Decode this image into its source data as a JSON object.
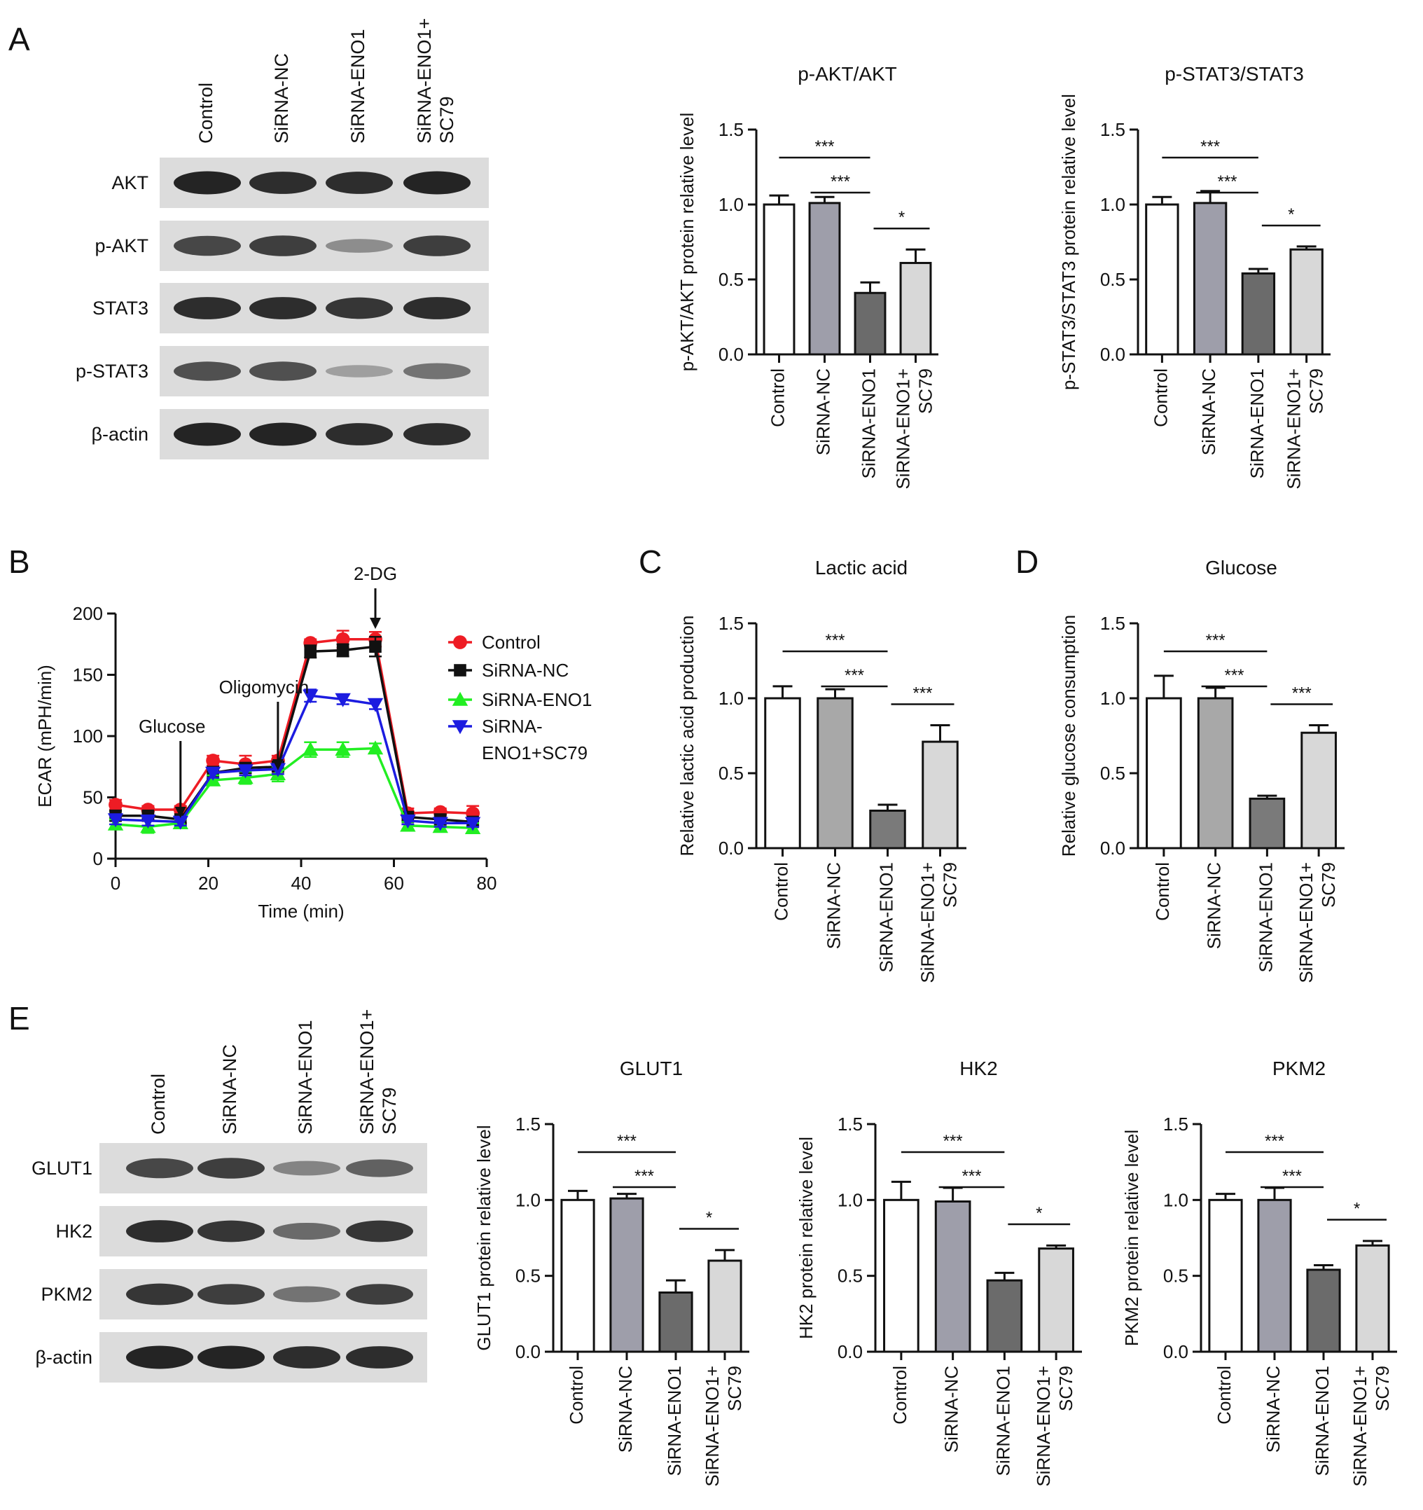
{
  "panel_labels": [
    "A",
    "B",
    "C",
    "D",
    "E"
  ],
  "blot_a": {
    "lanes": [
      "Control",
      "SiRNA-NC",
      "SiRNA-ENO1",
      "SiRNA-ENO1+ SC79"
    ],
    "rows": [
      {
        "label": "AKT",
        "intensity": [
          0.95,
          0.9,
          0.9,
          0.95
        ]
      },
      {
        "label": "p-AKT",
        "intensity": [
          0.75,
          0.8,
          0.35,
          0.8
        ]
      },
      {
        "label": "STAT3",
        "intensity": [
          0.9,
          0.9,
          0.85,
          0.9
        ]
      },
      {
        "label": "p-STAT3",
        "intensity": [
          0.7,
          0.7,
          0.25,
          0.5
        ]
      },
      {
        "label": "β-actin",
        "intensity": [
          0.95,
          0.95,
          0.9,
          0.9
        ]
      }
    ]
  },
  "blot_e": {
    "lanes": [
      "Control",
      "SiRNA-NC",
      "SiRNA-ENO1",
      "SiRNA-ENO1+ SC79"
    ],
    "rows": [
      {
        "label": "GLUT1",
        "intensity": [
          0.75,
          0.8,
          0.4,
          0.6
        ]
      },
      {
        "label": "HK2",
        "intensity": [
          0.9,
          0.85,
          0.55,
          0.85
        ]
      },
      {
        "label": "PKM2",
        "intensity": [
          0.85,
          0.8,
          0.5,
          0.8
        ]
      },
      {
        "label": "β-actin",
        "intensity": [
          0.95,
          0.95,
          0.9,
          0.9
        ]
      }
    ]
  },
  "chart_data": [
    {
      "id": "akt",
      "type": "bar",
      "title": "p-AKT/AKT",
      "ylabel": "p-AKT/AKT protein relative level",
      "categories": [
        "Control",
        "SiRNA-NC",
        "SiRNA-ENO1",
        "SiRNA-ENO1+ SC79"
      ],
      "values": [
        1.0,
        1.01,
        0.41,
        0.61
      ],
      "errors": [
        0.06,
        0.04,
        0.07,
        0.09
      ],
      "bar_colors": [
        "#ffffff",
        "#9e9eaa",
        "#6b6b6b",
        "#d8d8d8"
      ],
      "ylim": [
        0,
        1.5
      ],
      "yticks": [
        "0.0",
        "0.5",
        "1.0",
        "1.5"
      ],
      "significance": [
        {
          "from": 0,
          "to": 2,
          "label": "***"
        },
        {
          "from": 1,
          "to": 2,
          "label": "***"
        },
        {
          "from": 2,
          "to": 3,
          "label": "*"
        }
      ]
    },
    {
      "id": "stat3",
      "type": "bar",
      "title": "p-STAT3/STAT3",
      "ylabel": "p-STAT3/STAT3 protein relative level",
      "categories": [
        "Control",
        "SiRNA-NC",
        "SiRNA-ENO1",
        "SiRNA-ENO1+ SC79"
      ],
      "values": [
        1.0,
        1.01,
        0.54,
        0.7
      ],
      "errors": [
        0.05,
        0.08,
        0.03,
        0.02
      ],
      "bar_colors": [
        "#ffffff",
        "#9e9eaa",
        "#6b6b6b",
        "#d8d8d8"
      ],
      "ylim": [
        0,
        1.5
      ],
      "yticks": [
        "0.0",
        "0.5",
        "1.0",
        "1.5"
      ],
      "significance": [
        {
          "from": 0,
          "to": 2,
          "label": "***"
        },
        {
          "from": 1,
          "to": 2,
          "label": "***"
        },
        {
          "from": 2,
          "to": 3,
          "label": "*"
        }
      ]
    },
    {
      "id": "ecar",
      "type": "line",
      "title": "",
      "xlabel": "Time (min)",
      "ylabel": "ECAR (mPH/min)",
      "xlim": [
        0,
        80
      ],
      "ylim": [
        0,
        200
      ],
      "xticks": [
        "0",
        "20",
        "40",
        "60",
        "80"
      ],
      "yticks": [
        "0",
        "50",
        "100",
        "150",
        "200"
      ],
      "x": [
        0,
        7,
        14,
        21,
        28,
        35,
        42,
        49,
        56,
        63,
        70,
        77
      ],
      "series": [
        {
          "name": "Control",
          "color": "#ee1c24",
          "marker": "circle",
          "values": [
            44,
            40,
            40,
            80,
            77,
            80,
            176,
            179,
            179,
            37,
            38,
            37
          ],
          "errors": [
            4,
            3,
            3,
            4,
            7,
            4,
            3,
            7,
            6,
            4,
            3,
            6
          ]
        },
        {
          "name": "SiRNA-NC",
          "color": "#111111",
          "marker": "square",
          "values": [
            35,
            35,
            32,
            70,
            74,
            75,
            169,
            170,
            173,
            34,
            32,
            30
          ],
          "errors": [
            4,
            3,
            3,
            5,
            4,
            4,
            5,
            5,
            8,
            3,
            4,
            3
          ]
        },
        {
          "name": "SiRNA-ENO1",
          "color": "#22ee22",
          "marker": "triangle-up",
          "values": [
            28,
            26,
            29,
            64,
            66,
            69,
            89,
            89,
            90,
            27,
            26,
            25
          ],
          "errors": [
            4,
            5,
            3,
            4,
            5,
            6,
            6,
            6,
            4,
            3,
            3,
            4
          ]
        },
        {
          "name": "SiRNA-ENO1+SC79",
          "color": "#1c1ce0",
          "marker": "triangle-down",
          "values": [
            32,
            31,
            30,
            70,
            72,
            73,
            133,
            130,
            126,
            31,
            29,
            29
          ],
          "errors": [
            4,
            4,
            3,
            4,
            4,
            4,
            5,
            4,
            4,
            3,
            3,
            3
          ]
        }
      ],
      "legend": [
        "Control",
        "SiRNA-NC",
        "SiRNA-ENO1",
        "SiRNA-",
        "ENO1+SC79"
      ],
      "annotations": [
        {
          "text": "Glucose",
          "x": 14
        },
        {
          "text": "Oligomycin",
          "x": 35
        },
        {
          "text": "2-DG",
          "x": 56
        }
      ]
    },
    {
      "id": "lactic",
      "type": "bar",
      "title": "Lactic acid",
      "ylabel": "Relative lactic acid production",
      "categories": [
        "Control",
        "SiRNA-NC",
        "SiRNA-ENO1",
        "SiRNA-ENO1+ SC79"
      ],
      "values": [
        1.0,
        1.0,
        0.25,
        0.71
      ],
      "errors": [
        0.08,
        0.06,
        0.04,
        0.11
      ],
      "bar_colors": [
        "#ffffff",
        "#a8a8a8",
        "#7a7a7a",
        "#d8d8d8"
      ],
      "ylim": [
        0,
        1.5
      ],
      "yticks": [
        "0.0",
        "0.5",
        "1.0",
        "1.5"
      ],
      "significance": [
        {
          "from": 0,
          "to": 2,
          "label": "***"
        },
        {
          "from": 1,
          "to": 2,
          "label": "***"
        },
        {
          "from": 2,
          "to": 3,
          "label": "***"
        }
      ]
    },
    {
      "id": "glucose",
      "type": "bar",
      "title": "Glucose",
      "ylabel": "Relative glucose consumption",
      "categories": [
        "Control",
        "SiRNA-NC",
        "SiRNA-ENO1",
        "SiRNA-ENO1+ SC79"
      ],
      "values": [
        1.0,
        1.0,
        0.33,
        0.77
      ],
      "errors": [
        0.15,
        0.07,
        0.02,
        0.05
      ],
      "bar_colors": [
        "#ffffff",
        "#a8a8a8",
        "#7a7a7a",
        "#d8d8d8"
      ],
      "ylim": [
        0,
        1.5
      ],
      "yticks": [
        "0.0",
        "0.5",
        "1.0",
        "1.5"
      ],
      "significance": [
        {
          "from": 0,
          "to": 2,
          "label": "***"
        },
        {
          "from": 1,
          "to": 2,
          "label": "***"
        },
        {
          "from": 2,
          "to": 3,
          "label": "***"
        }
      ]
    },
    {
      "id": "glut1",
      "type": "bar",
      "title": "GLUT1",
      "ylabel": "GLUT1 protein relative level",
      "categories": [
        "Control",
        "SiRNA-NC",
        "SiRNA-ENO1",
        "SiRNA-ENO1+ SC79"
      ],
      "values": [
        1.0,
        1.01,
        0.39,
        0.6
      ],
      "errors": [
        0.06,
        0.03,
        0.08,
        0.07
      ],
      "bar_colors": [
        "#ffffff",
        "#9e9eaa",
        "#6b6b6b",
        "#d8d8d8"
      ],
      "ylim": [
        0,
        1.5
      ],
      "yticks": [
        "0.0",
        "0.5",
        "1.0",
        "1.5"
      ],
      "significance": [
        {
          "from": 0,
          "to": 2,
          "label": "***"
        },
        {
          "from": 1,
          "to": 2,
          "label": "***"
        },
        {
          "from": 2,
          "to": 3,
          "label": "*"
        }
      ]
    },
    {
      "id": "hk2",
      "type": "bar",
      "title": "HK2",
      "ylabel": "HK2 protein relative level",
      "categories": [
        "Control",
        "SiRNA-NC",
        "SiRNA-ENO1",
        "SiRNA-ENO1+ SC79"
      ],
      "values": [
        1.0,
        0.99,
        0.47,
        0.68
      ],
      "errors": [
        0.12,
        0.09,
        0.05,
        0.02
      ],
      "bar_colors": [
        "#ffffff",
        "#9e9eaa",
        "#6b6b6b",
        "#d8d8d8"
      ],
      "ylim": [
        0,
        1.5
      ],
      "yticks": [
        "0.0",
        "0.5",
        "1.0",
        "1.5"
      ],
      "significance": [
        {
          "from": 0,
          "to": 2,
          "label": "***"
        },
        {
          "from": 1,
          "to": 2,
          "label": "***"
        },
        {
          "from": 2,
          "to": 3,
          "label": "*"
        }
      ]
    },
    {
      "id": "pkm2",
      "type": "bar",
      "title": "PKM2",
      "ylabel": "PKM2 protein relative level",
      "categories": [
        "Control",
        "SiRNA-NC",
        "SiRNA-ENO1",
        "SiRNA-ENO1+ SC79"
      ],
      "values": [
        1.0,
        1.0,
        0.54,
        0.7
      ],
      "errors": [
        0.04,
        0.08,
        0.03,
        0.03
      ],
      "bar_colors": [
        "#ffffff",
        "#9e9eaa",
        "#6b6b6b",
        "#d8d8d8"
      ],
      "ylim": [
        0,
        1.5
      ],
      "yticks": [
        "0.0",
        "0.5",
        "1.0",
        "1.5"
      ],
      "significance": [
        {
          "from": 0,
          "to": 2,
          "label": "***"
        },
        {
          "from": 1,
          "to": 2,
          "label": "***"
        },
        {
          "from": 2,
          "to": 3,
          "label": "*"
        }
      ]
    }
  ]
}
